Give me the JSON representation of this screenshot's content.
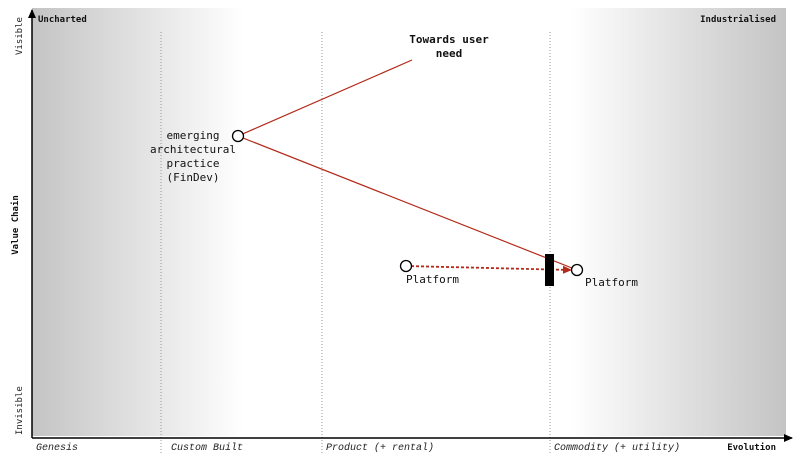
{
  "corners": {
    "top_left": "Uncharted",
    "top_right": "Industrialised"
  },
  "axes": {
    "y_title": "Value Chain",
    "y_top": "Visible",
    "y_bottom": "Invisible",
    "x_title": "Evolution"
  },
  "stages": [
    "Genesis",
    "Custom Built",
    "Product (+ rental)",
    "Commodity (+ utility)"
  ],
  "annotation": {
    "line1": "Towards user",
    "line2": "need"
  },
  "components": {
    "findev": {
      "label_lines": [
        "emerging",
        "architectural",
        "practice",
        "(FinDev)"
      ]
    },
    "platform_product": {
      "label": "Platform"
    },
    "platform_commodity": {
      "label": "Platform"
    }
  },
  "colors": {
    "link": "#b22a1a",
    "evolve": "#b22a1a",
    "inertia": "#000000",
    "axis": "#000000"
  },
  "icons": {
    "inertia": "inertia-bar-icon",
    "arrowhead": "arrowhead-icon"
  }
}
